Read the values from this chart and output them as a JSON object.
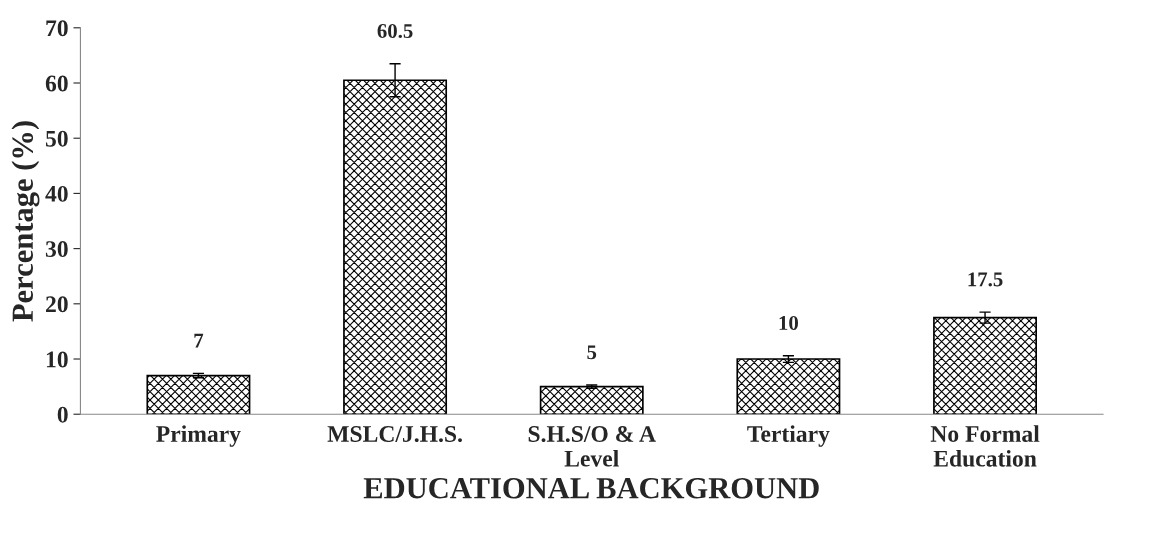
{
  "chart_data": {
    "type": "bar",
    "xlabel": "EDUCATIONAL BACKGROUND",
    "ylabel": "Percentage (%)",
    "categories": [
      "Primary",
      "MSLC/J.H.S.",
      "S.H.S/O & A\nLevel",
      "Tertiary",
      "No Formal\nEducation"
    ],
    "values": [
      7,
      60.5,
      5,
      10,
      17.5
    ],
    "errors": [
      0.4,
      3,
      0.3,
      0.6,
      1
    ],
    "color": "#000000",
    "ylim": [
      0,
      70
    ],
    "yticks": [
      0,
      10,
      20,
      30,
      40,
      50,
      60,
      70
    ],
    "data_labels": true,
    "grid": false,
    "legend": false
  }
}
